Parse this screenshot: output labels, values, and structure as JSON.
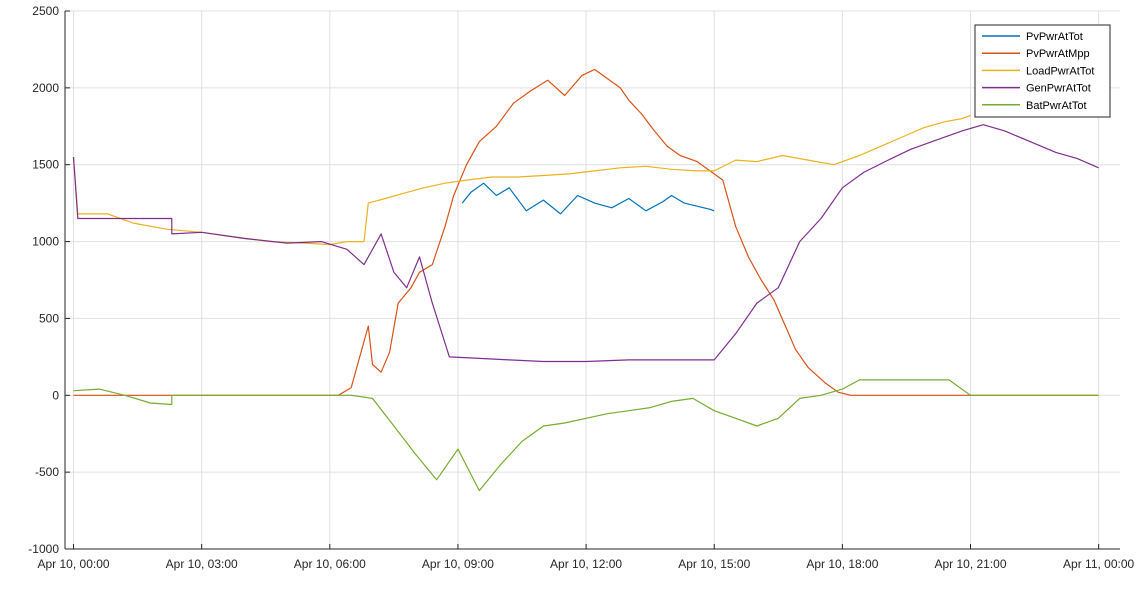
{
  "chart_data": {
    "type": "line",
    "title": "",
    "xlabel": "",
    "ylabel": "",
    "grid": true,
    "legend_position": "top-right",
    "ylim": [
      -1000,
      2500
    ],
    "yticks": [
      -1000,
      -500,
      0,
      500,
      1000,
      1500,
      2000,
      2500
    ],
    "xlim_hours": [
      -0.2,
      24.5
    ],
    "xticks_hours": [
      0,
      3,
      6,
      9,
      12,
      15,
      18,
      21,
      24
    ],
    "xtick_labels": [
      "Apr 10, 00:00",
      "Apr 10, 03:00",
      "Apr 10, 06:00",
      "Apr 10, 09:00",
      "Apr 10, 12:00",
      "Apr 10, 15:00",
      "Apr 10, 18:00",
      "Apr 10, 21:00",
      "Apr 11, 00:00"
    ],
    "series": [
      {
        "name": "PvPwrAtTot",
        "color": "#0072BD",
        "points": [
          [
            9.1,
            1250
          ],
          [
            9.3,
            1320
          ],
          [
            9.6,
            1380
          ],
          [
            9.9,
            1300
          ],
          [
            10.2,
            1350
          ],
          [
            10.6,
            1200
          ],
          [
            11.0,
            1270
          ],
          [
            11.4,
            1180
          ],
          [
            11.8,
            1300
          ],
          [
            12.2,
            1250
          ],
          [
            12.6,
            1220
          ],
          [
            13.0,
            1280
          ],
          [
            13.4,
            1200
          ],
          [
            13.8,
            1260
          ],
          [
            14.0,
            1300
          ],
          [
            14.3,
            1250
          ],
          [
            14.6,
            1230
          ],
          [
            14.9,
            1210
          ],
          [
            15.0,
            1200
          ]
        ]
      },
      {
        "name": "PvPwrAtMpp",
        "color": "#D95319",
        "points": [
          [
            0,
            0
          ],
          [
            6.2,
            0
          ],
          [
            6.5,
            50
          ],
          [
            6.8,
            350
          ],
          [
            6.9,
            450
          ],
          [
            7.0,
            200
          ],
          [
            7.2,
            150
          ],
          [
            7.4,
            280
          ],
          [
            7.6,
            600
          ],
          [
            7.9,
            700
          ],
          [
            8.1,
            800
          ],
          [
            8.4,
            850
          ],
          [
            8.7,
            1100
          ],
          [
            8.9,
            1300
          ],
          [
            9.2,
            1500
          ],
          [
            9.5,
            1650
          ],
          [
            9.9,
            1750
          ],
          [
            10.3,
            1900
          ],
          [
            10.7,
            1980
          ],
          [
            11.1,
            2050
          ],
          [
            11.5,
            1950
          ],
          [
            11.9,
            2080
          ],
          [
            12.2,
            2120
          ],
          [
            12.5,
            2060
          ],
          [
            12.8,
            2000
          ],
          [
            13.0,
            1920
          ],
          [
            13.3,
            1830
          ],
          [
            13.6,
            1720
          ],
          [
            13.9,
            1620
          ],
          [
            14.2,
            1560
          ],
          [
            14.6,
            1520
          ],
          [
            14.9,
            1460
          ],
          [
            15.2,
            1400
          ],
          [
            15.5,
            1100
          ],
          [
            15.8,
            900
          ],
          [
            16.1,
            750
          ],
          [
            16.4,
            620
          ],
          [
            16.7,
            430
          ],
          [
            16.9,
            300
          ],
          [
            17.2,
            180
          ],
          [
            17.6,
            80
          ],
          [
            17.9,
            20
          ],
          [
            18.2,
            0
          ],
          [
            24,
            0
          ]
        ]
      },
      {
        "name": "LoadPwrAtTot",
        "color": "#EDB120",
        "points": [
          [
            0,
            1550
          ],
          [
            0.1,
            1180
          ],
          [
            0.8,
            1180
          ],
          [
            1.4,
            1120
          ],
          [
            2.2,
            1080
          ],
          [
            3.0,
            1060
          ],
          [
            3.8,
            1030
          ],
          [
            4.6,
            1000
          ],
          [
            5.4,
            990
          ],
          [
            6.0,
            980
          ],
          [
            6.4,
            1000
          ],
          [
            6.8,
            1000
          ],
          [
            6.9,
            1250
          ],
          [
            7.3,
            1280
          ],
          [
            7.8,
            1320
          ],
          [
            8.2,
            1350
          ],
          [
            8.7,
            1380
          ],
          [
            9.2,
            1400
          ],
          [
            9.8,
            1420
          ],
          [
            10.4,
            1420
          ],
          [
            11.0,
            1430
          ],
          [
            11.6,
            1440
          ],
          [
            12.2,
            1460
          ],
          [
            12.8,
            1480
          ],
          [
            13.4,
            1490
          ],
          [
            14.0,
            1470
          ],
          [
            14.6,
            1460
          ],
          [
            15.0,
            1460
          ],
          [
            15.5,
            1530
          ],
          [
            16.0,
            1520
          ],
          [
            16.6,
            1560
          ],
          [
            17.2,
            1530
          ],
          [
            17.8,
            1500
          ],
          [
            18.4,
            1560
          ],
          [
            18.9,
            1620
          ],
          [
            19.4,
            1680
          ],
          [
            19.9,
            1740
          ],
          [
            20.4,
            1780
          ],
          [
            20.8,
            1800
          ],
          [
            21.0,
            1820
          ]
        ]
      },
      {
        "name": "GenPwrAtTot",
        "color": "#7E2F8E",
        "points": [
          [
            0,
            1550
          ],
          [
            0.1,
            1150
          ],
          [
            2.3,
            1150
          ],
          [
            2.3,
            1050
          ],
          [
            3.0,
            1060
          ],
          [
            4.0,
            1020
          ],
          [
            5.0,
            990
          ],
          [
            5.8,
            1000
          ],
          [
            6.4,
            950
          ],
          [
            6.8,
            850
          ],
          [
            7.2,
            1050
          ],
          [
            7.5,
            800
          ],
          [
            7.8,
            700
          ],
          [
            8.1,
            900
          ],
          [
            8.4,
            600
          ],
          [
            8.8,
            250
          ],
          [
            9.5,
            240
          ],
          [
            10.2,
            230
          ],
          [
            11.0,
            220
          ],
          [
            12.0,
            220
          ],
          [
            13.0,
            230
          ],
          [
            14.0,
            230
          ],
          [
            15.0,
            230
          ],
          [
            15.5,
            400
          ],
          [
            16.0,
            600
          ],
          [
            16.5,
            700
          ],
          [
            17.0,
            1000
          ],
          [
            17.5,
            1150
          ],
          [
            18.0,
            1350
          ],
          [
            18.5,
            1450
          ],
          [
            19.0,
            1520
          ],
          [
            19.6,
            1600
          ],
          [
            20.2,
            1660
          ],
          [
            20.8,
            1720
          ],
          [
            21.3,
            1760
          ],
          [
            21.8,
            1720
          ],
          [
            22.4,
            1650
          ],
          [
            23.0,
            1580
          ],
          [
            23.5,
            1540
          ],
          [
            24.0,
            1480
          ]
        ]
      },
      {
        "name": "BatPwrAtTot",
        "color": "#77AC30",
        "points": [
          [
            0,
            30
          ],
          [
            0.6,
            40
          ],
          [
            1.2,
            0
          ],
          [
            1.8,
            -50
          ],
          [
            2.3,
            -60
          ],
          [
            2.3,
            0
          ],
          [
            6.5,
            0
          ],
          [
            7.0,
            -20
          ],
          [
            7.5,
            -200
          ],
          [
            8.0,
            -380
          ],
          [
            8.5,
            -550
          ],
          [
            9.0,
            -350
          ],
          [
            9.5,
            -620
          ],
          [
            10.0,
            -450
          ],
          [
            10.5,
            -300
          ],
          [
            11.0,
            -200
          ],
          [
            11.5,
            -180
          ],
          [
            12.0,
            -150
          ],
          [
            12.5,
            -120
          ],
          [
            13.0,
            -100
          ],
          [
            13.5,
            -80
          ],
          [
            14.0,
            -40
          ],
          [
            14.5,
            -20
          ],
          [
            15.0,
            -100
          ],
          [
            15.5,
            -150
          ],
          [
            16.0,
            -200
          ],
          [
            16.5,
            -150
          ],
          [
            17.0,
            -20
          ],
          [
            17.5,
            0
          ],
          [
            18.0,
            40
          ],
          [
            18.4,
            100
          ],
          [
            20.5,
            100
          ],
          [
            21.0,
            0
          ],
          [
            24.0,
            0
          ]
        ]
      }
    ]
  }
}
